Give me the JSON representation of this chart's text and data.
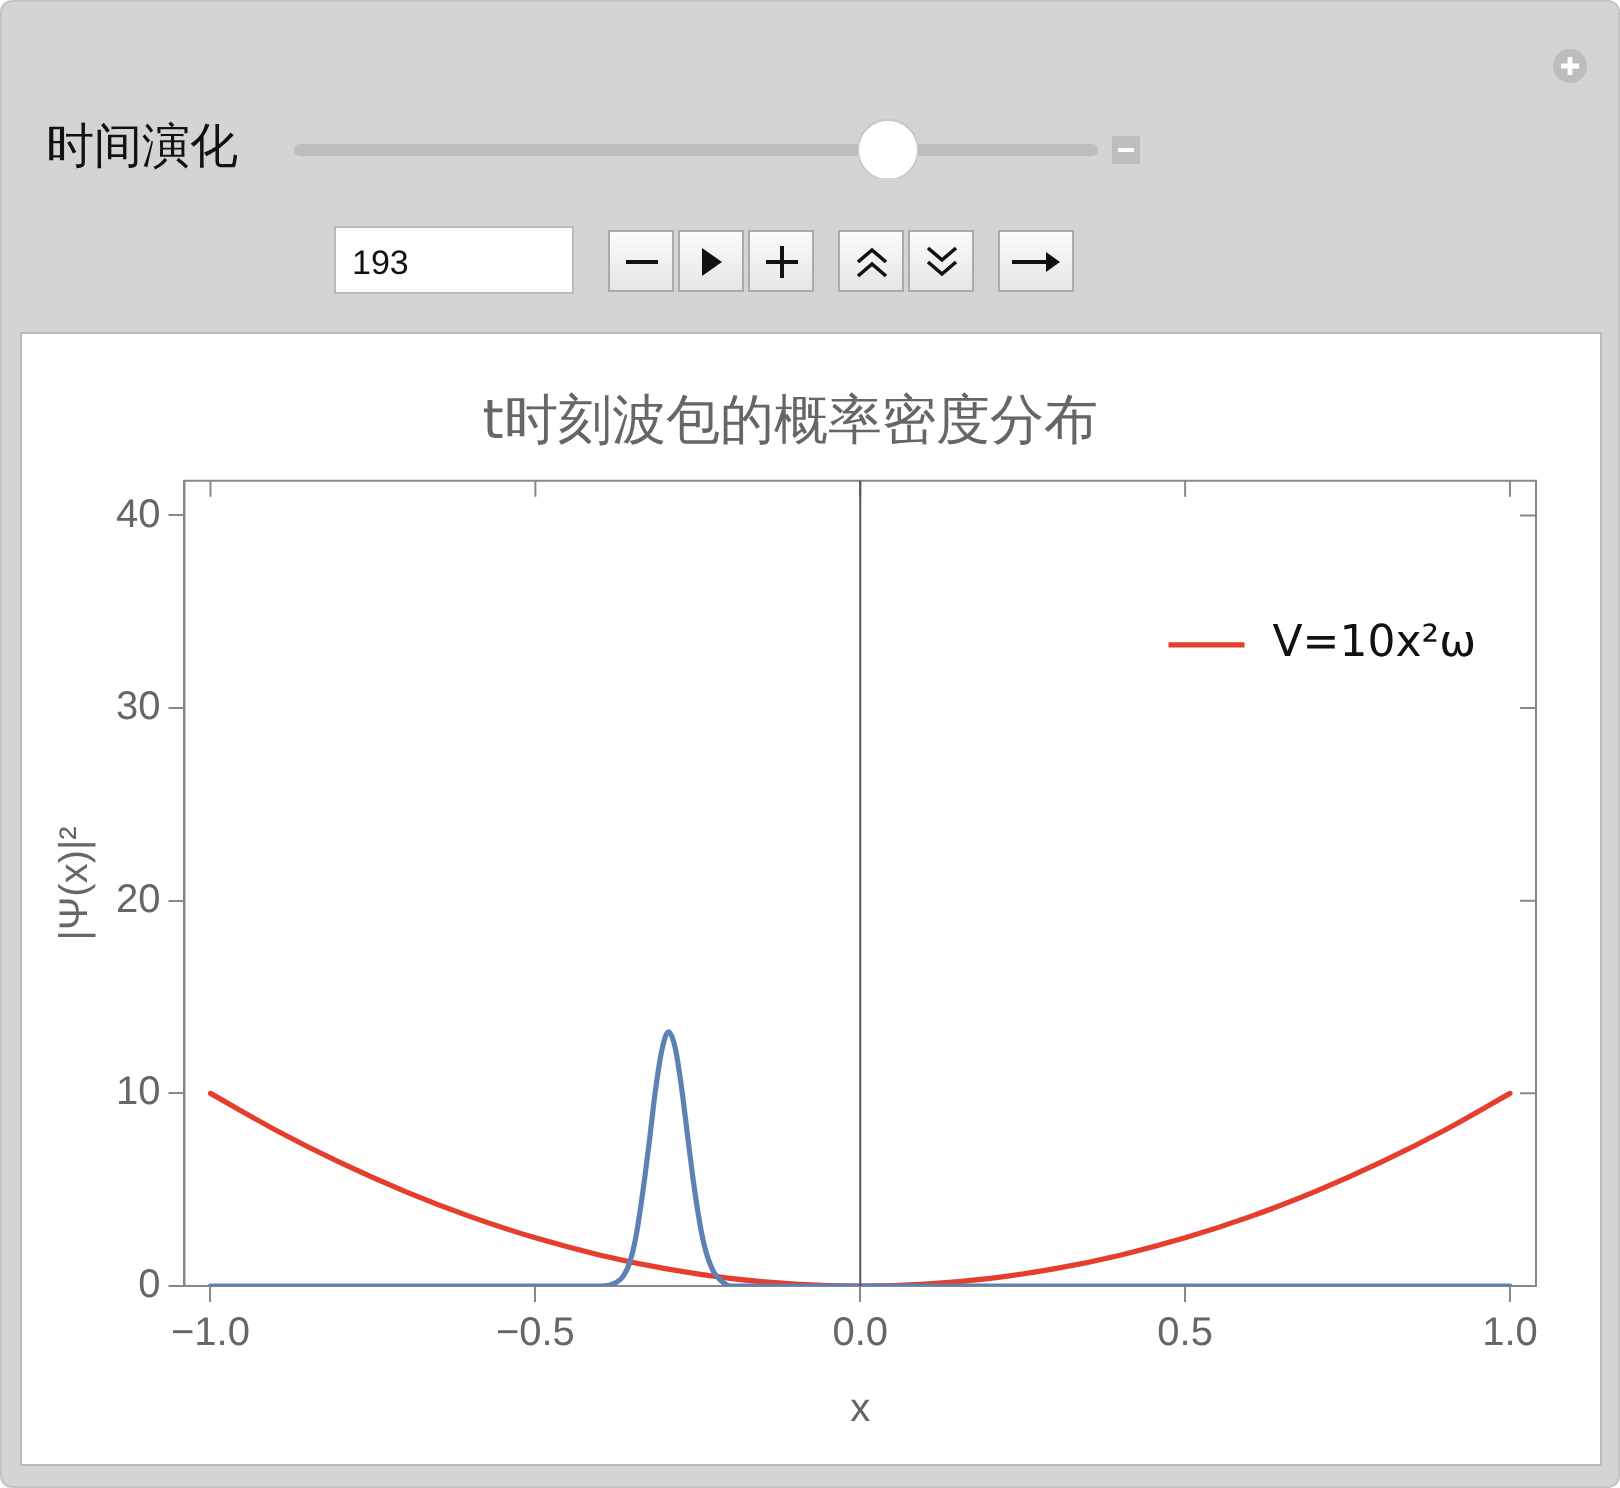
{
  "chart_data": {
    "type": "line",
    "title": "t时刻波包的概率密度分布",
    "xlabel": "x",
    "ylabel": "|Ψ(x)|²",
    "annotations": [
      "时间演化",
      "193"
    ],
    "xlim": [
      -1.04,
      1.04
    ],
    "ylim": [
      0,
      41.8
    ],
    "xticks": [
      {
        "value": -1,
        "label": "−1.0"
      },
      {
        "value": -0.5,
        "label": "−0.5"
      },
      {
        "value": 0,
        "label": "0.0"
      },
      {
        "value": 0.5,
        "label": "0.5"
      },
      {
        "value": 1,
        "label": "1.0"
      }
    ],
    "yticks": [
      0,
      10,
      20,
      30,
      40
    ],
    "grid": false,
    "legend": "top right",
    "marker": "none",
    "line_style": "solid",
    "ref_lines": [
      {
        "axis": "x",
        "value": 0,
        "color": "#555555"
      }
    ],
    "series": [
      {
        "color": "#5e81b5",
        "x": [
          -1,
          -0.6,
          -0.4,
          -0.375,
          -0.365,
          -0.355,
          -0.345,
          -0.335,
          -0.325,
          -0.315,
          -0.305,
          -0.295,
          -0.285,
          -0.275,
          -0.265,
          -0.255,
          -0.245,
          -0.235,
          -0.225,
          -0.215,
          -0.2,
          -0.1,
          0,
          0.5,
          1
        ],
        "values": [
          0,
          0,
          0,
          0.2,
          0.5,
          1.2,
          2.6,
          4.8,
          7.4,
          10.2,
          12.3,
          13.2,
          12.4,
          10.3,
          7.6,
          5.0,
          2.9,
          1.5,
          0.7,
          0.3,
          0,
          0,
          0,
          0,
          0
        ]
      },
      {
        "name": "V=10x²ω",
        "color": "#e53e2c",
        "x": [
          -1,
          -0.9,
          -0.8,
          -0.7,
          -0.6,
          -0.5,
          -0.4,
          -0.3,
          -0.2,
          -0.1,
          0,
          0.1,
          0.2,
          0.3,
          0.4,
          0.5,
          0.6,
          0.7,
          0.8,
          0.9,
          1
        ],
        "values": [
          10,
          8.1,
          6.4,
          4.9,
          3.6,
          2.5,
          1.6,
          0.9,
          0.4,
          0.1,
          0,
          0.1,
          0.4,
          0.9,
          1.6,
          2.5,
          3.6,
          4.9,
          6.4,
          8.1,
          10
        ]
      }
    ]
  }
}
